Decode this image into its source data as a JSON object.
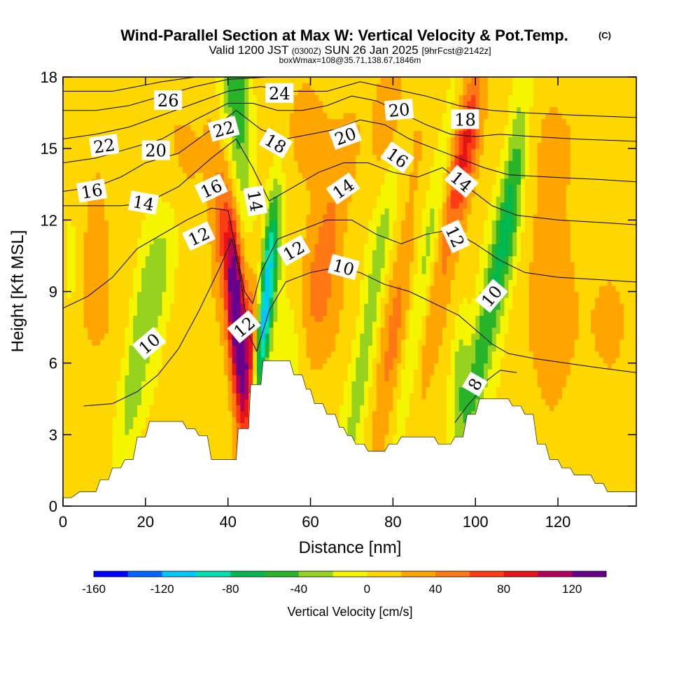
{
  "titles": {
    "main": "Wind-Parallel Section at Max W: Vertical Velocity & Pot.Temp.",
    "copyright": "(C)",
    "valid_a": "Valid 1200 JST",
    "valid_b": "(0300Z)",
    "valid_c": "SUN 26 Jan 2025",
    "valid_d": "[9hrFcst@2142z]",
    "boxw": "boxWmax=108@35.71,138.67,1846m"
  },
  "chart_data": {
    "type": "heatmap",
    "xlabel": "Distance [nm]",
    "ylabel": "Height [Kft MSL]",
    "xlim": [
      0,
      139
    ],
    "ylim": [
      0,
      18
    ],
    "x_ticks": [
      0,
      20,
      40,
      60,
      80,
      100,
      120
    ],
    "y_ticks": [
      0,
      3,
      6,
      9,
      12,
      15,
      18
    ],
    "colorbar": {
      "label": "Vertical Velocity [cm/s]",
      "range": [
        -160,
        140
      ],
      "step": 20,
      "tick_values": [
        -160,
        -120,
        -80,
        -40,
        0,
        40,
        80,
        120
      ],
      "colors": [
        "#0000ff",
        "#0066ff",
        "#00c8ff",
        "#00e0b0",
        "#00b850",
        "#28b428",
        "#96d21e",
        "#f5f500",
        "#ffd700",
        "#ffa500",
        "#ff7814",
        "#ff3c14",
        "#e61414",
        "#b4005a",
        "#64008c"
      ]
    },
    "terrain": [
      [
        0,
        0.35
      ],
      [
        2,
        0.35
      ],
      [
        4,
        0.6
      ],
      [
        8,
        0.6
      ],
      [
        9,
        1.1
      ],
      [
        11,
        1.1
      ],
      [
        12,
        1.6
      ],
      [
        14,
        1.6
      ],
      [
        15,
        1.95
      ],
      [
        17,
        1.95
      ],
      [
        18,
        2.9
      ],
      [
        20,
        2.9
      ],
      [
        21,
        3.55
      ],
      [
        29,
        3.55
      ],
      [
        30,
        3.25
      ],
      [
        32,
        3.25
      ],
      [
        33,
        2.95
      ],
      [
        35,
        2.95
      ],
      [
        36,
        1.95
      ],
      [
        42,
        1.95
      ],
      [
        42.5,
        3.25
      ],
      [
        45,
        3.25
      ],
      [
        45.5,
        5.1
      ],
      [
        48,
        5.1
      ],
      [
        48.5,
        6.1
      ],
      [
        55,
        6.1
      ],
      [
        56,
        5.5
      ],
      [
        58,
        5.5
      ],
      [
        59,
        4.9
      ],
      [
        60,
        4.9
      ],
      [
        61,
        4.3
      ],
      [
        63,
        4.3
      ],
      [
        64,
        3.85
      ],
      [
        66,
        3.85
      ],
      [
        67,
        3.3
      ],
      [
        68,
        3.3
      ],
      [
        69,
        2.95
      ],
      [
        70,
        2.95
      ],
      [
        71,
        2.6
      ],
      [
        73,
        2.6
      ],
      [
        74,
        2.3
      ],
      [
        78,
        2.3
      ],
      [
        79,
        2.6
      ],
      [
        81,
        2.6
      ],
      [
        82,
        2.9
      ],
      [
        90,
        2.9
      ],
      [
        91,
        2.6
      ],
      [
        94,
        2.6
      ],
      [
        95,
        2.9
      ],
      [
        97,
        2.9
      ],
      [
        98,
        3.85
      ],
      [
        100,
        3.85
      ],
      [
        101,
        4.5
      ],
      [
        108,
        4.5
      ],
      [
        109,
        4.2
      ],
      [
        111,
        4.2
      ],
      [
        112,
        3.85
      ],
      [
        114,
        3.85
      ],
      [
        115,
        2.6
      ],
      [
        117,
        2.6
      ],
      [
        118,
        1.95
      ],
      [
        120,
        1.95
      ],
      [
        121,
        1.6
      ],
      [
        123,
        1.6
      ],
      [
        124,
        1.3
      ],
      [
        128,
        1.3
      ],
      [
        129,
        0.95
      ],
      [
        131,
        0.95
      ],
      [
        132,
        0.6
      ],
      [
        139,
        0.6
      ]
    ],
    "w_features": [
      {
        "x": 42,
        "z": 8.2,
        "sx": 1.5,
        "sz": 3.2,
        "tilt": -0.12,
        "w": 140
      },
      {
        "x": 45.5,
        "z": 6.0,
        "sx": 1.6,
        "sz": 2.2,
        "tilt": 0.1,
        "w": 70
      },
      {
        "x": 48.5,
        "z": 7.5,
        "sx": 1.2,
        "sz": 3.0,
        "tilt": 0.2,
        "w": -120
      },
      {
        "x": 51,
        "z": 10.5,
        "sx": 1.8,
        "sz": 2.6,
        "tilt": 0.1,
        "w": -45
      },
      {
        "x": 55,
        "z": 6.8,
        "sx": 3.0,
        "sz": 1.8,
        "tilt": 0.2,
        "w": -30
      },
      {
        "x": 18,
        "z": 6.5,
        "sx": 2.2,
        "sz": 4.0,
        "tilt": 0.3,
        "w": -45
      },
      {
        "x": 24,
        "z": 9.5,
        "sx": 2.2,
        "sz": 2.5,
        "tilt": 0.3,
        "w": -30
      },
      {
        "x": 42,
        "z": 17.0,
        "sx": 2.6,
        "sz": 3.5,
        "tilt": -0.1,
        "w": -70
      },
      {
        "x": 38,
        "z": 12.0,
        "sx": 1.8,
        "sz": 2.5,
        "tilt": -0.1,
        "w": 40
      },
      {
        "x": 62,
        "z": 8.5,
        "sx": 4.0,
        "sz": 2.5,
        "tilt": 0.1,
        "w": 25
      },
      {
        "x": 65,
        "z": 12.0,
        "sx": 3.0,
        "sz": 3.0,
        "tilt": 0.4,
        "w": 30
      },
      {
        "x": 75,
        "z": 8.5,
        "sx": 2.0,
        "sz": 6.0,
        "tilt": 0.35,
        "w": -42
      },
      {
        "x": 80,
        "z": 6.5,
        "sx": 2.5,
        "sz": 4.0,
        "tilt": 0.3,
        "w": 35
      },
      {
        "x": 88,
        "z": 10.0,
        "sx": 2.2,
        "sz": 6.0,
        "tilt": 0.4,
        "w": -45
      },
      {
        "x": 93,
        "z": 12.0,
        "sx": 2.0,
        "sz": 5.0,
        "tilt": 0.35,
        "w": 40
      },
      {
        "x": 98,
        "z": 15.0,
        "sx": 2.0,
        "sz": 2.5,
        "tilt": 0.3,
        "w": 60
      },
      {
        "x": 103,
        "z": 8.0,
        "sx": 2.0,
        "sz": 4.5,
        "tilt": 0.4,
        "w": -65
      },
      {
        "x": 109,
        "z": 13.0,
        "sx": 1.8,
        "sz": 3.5,
        "tilt": 0.2,
        "w": -40
      },
      {
        "x": 96,
        "z": 5.5,
        "sx": 1.5,
        "sz": 2.0,
        "tilt": 0.1,
        "w": -40
      },
      {
        "x": 118,
        "z": 9.5,
        "sx": 3.5,
        "sz": 4.0,
        "tilt": 0.0,
        "w": 25
      },
      {
        "x": 2,
        "z": 10.0,
        "sx": 1.2,
        "sz": 1.5,
        "tilt": 0.0,
        "w": -20
      },
      {
        "x": 8,
        "z": 10.5,
        "sx": 2.0,
        "sz": 2.0,
        "tilt": 0.0,
        "w": 25
      },
      {
        "x": 28,
        "z": 14.0,
        "sx": 5.0,
        "sz": 2.5,
        "tilt": 0.0,
        "w": 18
      },
      {
        "x": 80,
        "z": 16.5,
        "sx": 3.0,
        "sz": 2.0,
        "tilt": 0.2,
        "w": 25
      },
      {
        "x": 60,
        "z": 16.0,
        "sx": 4.0,
        "sz": 2.5,
        "tilt": 0.0,
        "w": 15
      },
      {
        "x": 133,
        "z": 7.5,
        "sx": 3.0,
        "sz": 2.0,
        "tilt": 0.0,
        "w": 15
      }
    ],
    "theta_lines": [
      {
        "value": 8,
        "pts": [
          [
            95,
            3.5
          ],
          [
            98,
            4.2
          ],
          [
            100,
            4.6
          ],
          [
            103,
            5.3
          ],
          [
            106,
            5.7
          ],
          [
            110,
            5.6
          ]
        ]
      },
      {
        "value": 10,
        "pts": [
          [
            5,
            4.2
          ],
          [
            12,
            4.3
          ],
          [
            18,
            4.8
          ],
          [
            23,
            5.5
          ],
          [
            28,
            6.6
          ],
          [
            33,
            8.2
          ],
          [
            38,
            10.0
          ],
          [
            41,
            11.2
          ],
          [
            43,
            9.6
          ],
          [
            45,
            7.2
          ],
          [
            47,
            6.5
          ],
          [
            50,
            8.2
          ],
          [
            54,
            9.4
          ],
          [
            60,
            9.8
          ],
          [
            66,
            10.0
          ],
          [
            72,
            9.8
          ],
          [
            78,
            9.3
          ],
          [
            84,
            9.0
          ],
          [
            90,
            8.5
          ],
          [
            96,
            8.0
          ],
          [
            100,
            7.4
          ],
          [
            104,
            6.8
          ],
          [
            108,
            6.4
          ],
          [
            114,
            6.2
          ],
          [
            122,
            6.0
          ],
          [
            130,
            5.8
          ],
          [
            139,
            5.6
          ]
        ]
      },
      {
        "value": 12,
        "pts": [
          [
            0,
            8.3
          ],
          [
            6,
            8.8
          ],
          [
            12,
            9.6
          ],
          [
            18,
            10.8
          ],
          [
            24,
            11.4
          ],
          [
            30,
            12.0
          ],
          [
            36,
            12.5
          ],
          [
            40,
            12.4
          ],
          [
            44,
            9.0
          ],
          [
            46,
            8.5
          ],
          [
            48,
            9.8
          ],
          [
            52,
            11.2
          ],
          [
            58,
            11.6
          ],
          [
            64,
            12.0
          ],
          [
            70,
            12.0
          ],
          [
            76,
            11.4
          ],
          [
            82,
            11.0
          ],
          [
            88,
            11.4
          ],
          [
            94,
            11.6
          ],
          [
            100,
            11.0
          ],
          [
            106,
            10.3
          ],
          [
            112,
            9.8
          ],
          [
            120,
            9.6
          ],
          [
            130,
            9.5
          ],
          [
            139,
            9.4
          ]
        ]
      },
      {
        "value": 14,
        "pts": [
          [
            0,
            12.6
          ],
          [
            8,
            12.6
          ],
          [
            14,
            12.6
          ],
          [
            20,
            12.7
          ],
          [
            28,
            13.4
          ],
          [
            36,
            14.6
          ],
          [
            42,
            15.4
          ],
          [
            46,
            14.2
          ],
          [
            50,
            12.8
          ],
          [
            56,
            13.4
          ],
          [
            62,
            14.0
          ],
          [
            68,
            14.4
          ],
          [
            74,
            14.4
          ],
          [
            80,
            14.0
          ],
          [
            86,
            13.8
          ],
          [
            92,
            14.2
          ],
          [
            98,
            13.4
          ],
          [
            104,
            12.6
          ],
          [
            110,
            12.2
          ],
          [
            120,
            12.0
          ],
          [
            130,
            11.9
          ],
          [
            139,
            11.8
          ]
        ]
      },
      {
        "value": 16,
        "pts": [
          [
            0,
            13.2
          ],
          [
            8,
            13.4
          ],
          [
            14,
            13.8
          ],
          [
            20,
            14.4
          ],
          [
            28,
            14.8
          ],
          [
            36,
            15.8
          ],
          [
            42,
            16.6
          ],
          [
            48,
            15.8
          ],
          [
            54,
            15.4
          ],
          [
            60,
            15.6
          ],
          [
            66,
            15.8
          ],
          [
            72,
            16.2
          ],
          [
            78,
            16.0
          ],
          [
            84,
            15.4
          ],
          [
            90,
            15.0
          ],
          [
            96,
            14.6
          ],
          [
            102,
            14.2
          ],
          [
            108,
            13.9
          ],
          [
            118,
            13.8
          ],
          [
            130,
            13.7
          ],
          [
            139,
            13.6
          ]
        ]
      },
      {
        "value": 18,
        "pts": [
          [
            0,
            14.4
          ],
          [
            8,
            14.6
          ],
          [
            16,
            15.0
          ],
          [
            24,
            15.4
          ],
          [
            32,
            16.2
          ],
          [
            40,
            16.9
          ],
          [
            46,
            16.9
          ],
          [
            52,
            16.6
          ],
          [
            58,
            16.6
          ],
          [
            64,
            16.8
          ],
          [
            70,
            17.2
          ],
          [
            76,
            17.0
          ],
          [
            82,
            16.5
          ],
          [
            88,
            16.0
          ],
          [
            94,
            15.6
          ],
          [
            100,
            15.5
          ],
          [
            106,
            15.6
          ],
          [
            114,
            15.5
          ],
          [
            124,
            15.4
          ],
          [
            139,
            15.3
          ]
        ]
      },
      {
        "value": 20,
        "pts": [
          [
            0,
            15.4
          ],
          [
            8,
            15.6
          ],
          [
            16,
            15.9
          ],
          [
            24,
            16.4
          ],
          [
            32,
            16.9
          ],
          [
            40,
            17.4
          ],
          [
            48,
            17.6
          ],
          [
            56,
            17.4
          ],
          [
            64,
            17.4
          ],
          [
            72,
            17.8
          ],
          [
            80,
            17.5
          ],
          [
            88,
            17.2
          ],
          [
            96,
            16.8
          ],
          [
            104,
            16.6
          ],
          [
            112,
            16.5
          ],
          [
            124,
            16.4
          ],
          [
            139,
            16.3
          ]
        ]
      },
      {
        "value": 22,
        "pts": [
          [
            0,
            16.6
          ],
          [
            8,
            16.6
          ],
          [
            16,
            16.8
          ],
          [
            24,
            17.2
          ],
          [
            32,
            17.6
          ],
          [
            40,
            17.9
          ],
          [
            50,
            18.0
          ]
        ]
      },
      {
        "value": 24,
        "pts": [
          [
            0,
            17.4
          ],
          [
            12,
            17.4
          ],
          [
            24,
            17.8
          ],
          [
            32,
            18.0
          ]
        ]
      }
    ],
    "theta_labels": [
      {
        "text": "10",
        "x": 21,
        "z": 6.8,
        "angle": -40
      },
      {
        "text": "12",
        "x": 44,
        "z": 7.5,
        "angle": -40
      },
      {
        "text": "12",
        "x": 33,
        "z": 11.3,
        "angle": -25
      },
      {
        "text": "12",
        "x": 56,
        "z": 10.7,
        "angle": -30
      },
      {
        "text": "10",
        "x": 68,
        "z": 10.0,
        "angle": 15
      },
      {
        "text": "12",
        "x": 95,
        "z": 11.3,
        "angle": 65
      },
      {
        "text": "10",
        "x": 104,
        "z": 8.8,
        "angle": -50
      },
      {
        "text": "8",
        "x": 100,
        "z": 5.1,
        "angle": -60
      },
      {
        "text": "14",
        "x": 46.5,
        "z": 12.8,
        "angle": 80
      },
      {
        "text": "14",
        "x": 19.5,
        "z": 12.7,
        "angle": 10
      },
      {
        "text": "14",
        "x": 68,
        "z": 13.3,
        "angle": -35
      },
      {
        "text": "14",
        "x": 96.5,
        "z": 13.6,
        "angle": 40
      },
      {
        "text": "16",
        "x": 7,
        "z": 13.2,
        "angle": -10
      },
      {
        "text": "16",
        "x": 36,
        "z": 13.3,
        "angle": -25
      },
      {
        "text": "16",
        "x": 81,
        "z": 14.6,
        "angle": 35
      },
      {
        "text": "18",
        "x": 51.5,
        "z": 15.2,
        "angle": 30
      },
      {
        "text": "18",
        "x": 97.5,
        "z": 16.2,
        "angle": 0
      },
      {
        "text": "20",
        "x": 22.5,
        "z": 14.9,
        "angle": 0
      },
      {
        "text": "20",
        "x": 68.5,
        "z": 15.5,
        "angle": -20
      },
      {
        "text": "20",
        "x": 81.5,
        "z": 16.6,
        "angle": -5
      },
      {
        "text": "22",
        "x": 10,
        "z": 15.1,
        "angle": -8
      },
      {
        "text": "22",
        "x": 39,
        "z": 15.8,
        "angle": -15
      },
      {
        "text": "24",
        "x": 52.5,
        "z": 17.3,
        "angle": 0
      },
      {
        "text": "26",
        "x": 25.5,
        "z": 17.0,
        "angle": 0
      }
    ]
  }
}
